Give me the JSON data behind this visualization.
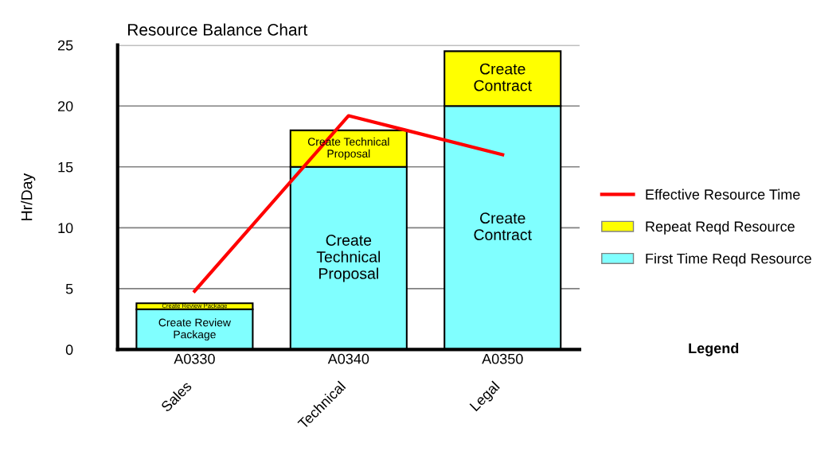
{
  "chart_data": {
    "type": "bar",
    "title": "Resource Balance Chart",
    "ylabel": "Hr/Day",
    "categories": [
      "A0330",
      "A0340",
      "A0350"
    ],
    "stacked": true,
    "series": [
      {
        "name": "First Time Reqd Resource",
        "color": "#80ffff",
        "values": [
          3.3,
          15,
          20
        ],
        "value_labels": [
          "Create Review\nPackage",
          "Create\nTechnical\nProposal",
          "Create\nContract"
        ]
      },
      {
        "name": "Repeat Reqd Resource",
        "color": "#ffff00",
        "values": [
          0.5,
          3,
          4.5
        ],
        "value_labels": [
          "Create Review Package",
          "Create Technical\nProposal",
          "Create\nContract"
        ]
      },
      {
        "name": "Effective Resource Time",
        "type": "line",
        "color": "#ff0000",
        "values": [
          4.8,
          19.2,
          16
        ]
      }
    ],
    "ylim": [
      0,
      25
    ],
    "yticks": [
      0,
      5,
      10,
      15,
      20,
      25
    ],
    "grid": "y",
    "legend": "right",
    "legend_title": "Legend",
    "annotations": [
      "Sales",
      "Technical",
      "Legal"
    ]
  }
}
